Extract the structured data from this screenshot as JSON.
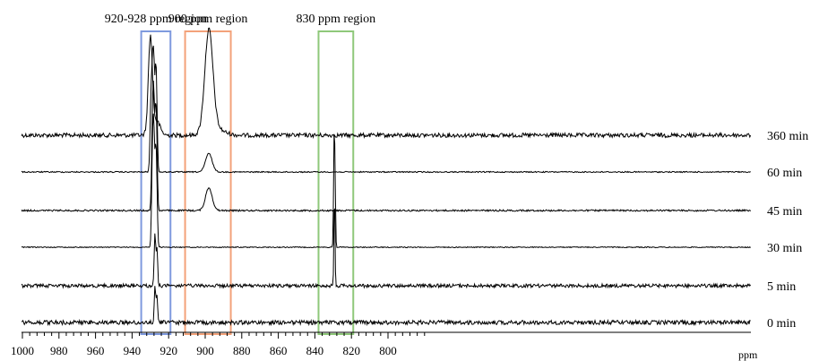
{
  "chart_data": {
    "type": "line",
    "title": "",
    "xlabel": "ppm",
    "ylabel": "",
    "xlim": [
      1000,
      780
    ],
    "x_reversed": true,
    "x_ticks": [
      1000,
      980,
      960,
      940,
      920,
      900,
      880,
      860,
      840,
      820,
      800
    ],
    "grid": false,
    "regions": [
      {
        "label": "920-928 ppm region",
        "from": 935,
        "to": 919,
        "color": "#7f9ade"
      },
      {
        "label": "900 ppm region",
        "from": 911,
        "to": 886,
        "color": "#f3a27a"
      },
      {
        "label": "830 ppm region",
        "from": 838,
        "to": 819,
        "color": "#8fc87a"
      }
    ],
    "series": [
      {
        "name": "360 min",
        "noise": 0.9,
        "peaks": [
          [
            930,
            1.1,
            6.5
          ],
          [
            928,
            2.5,
            0.6
          ],
          [
            926,
            1.6,
            0.5
          ],
          [
            898,
            2.2,
            7
          ],
          [
            895,
            4.8,
            0.5
          ]
        ]
      },
      {
        "name": "60 min",
        "noise": 0.25,
        "peaks": [
          [
            928.8,
            0.5,
            5.8
          ],
          [
            928.0,
            0.5,
            6.2
          ],
          [
            927.0,
            0.4,
            6.0
          ],
          [
            929.7,
            0.5,
            4.5
          ],
          [
            926.4,
            0.4,
            3.0
          ],
          [
            898,
            1.8,
            1.3
          ]
        ]
      },
      {
        "name": "45 min",
        "noise": 0.35,
        "peaks": [
          [
            928.8,
            0.5,
            6.0
          ],
          [
            928.0,
            0.5,
            6.4
          ],
          [
            927.0,
            0.4,
            5.8
          ],
          [
            926.4,
            0.4,
            3.2
          ],
          [
            898,
            1.8,
            1.6
          ]
        ]
      },
      {
        "name": "30 min",
        "noise": 0.2,
        "peaks": [
          [
            928.8,
            0.5,
            6.2
          ],
          [
            928.0,
            0.5,
            6.6
          ],
          [
            927.0,
            0.4,
            5.5
          ],
          [
            926.4,
            0.4,
            3.0
          ],
          [
            829.5,
            0.3,
            6.8
          ],
          [
            829.0,
            0.3,
            4.6
          ]
        ]
      },
      {
        "name": "5 min",
        "noise": 0.75,
        "peaks": [
          [
            927.5,
            0.4,
            3.6
          ],
          [
            926.4,
            0.4,
            2.6
          ],
          [
            829.3,
            0.3,
            6.5
          ]
        ]
      },
      {
        "name": "0 min",
        "noise": 0.9,
        "peaks": [
          [
            927.5,
            0.4,
            2.4
          ],
          [
            926.4,
            0.4,
            2.0
          ]
        ]
      }
    ]
  }
}
